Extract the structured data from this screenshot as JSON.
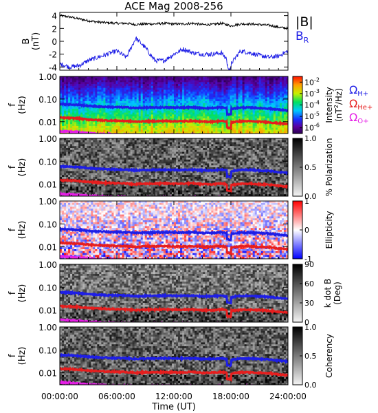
{
  "title": "ACE Mag 2008-256",
  "colors": {
    "b_total": "#000000",
    "b_r": "#1e1ee6",
    "omega_h": "#1e1ee6",
    "omega_he": "#e61e1e",
    "omega_o": "#e61ee6"
  },
  "x_axis": {
    "label": "Time (UT)",
    "ticks": [
      "00:00:00",
      "06:00:00",
      "12:00:00",
      "18:00:00",
      "24:00:00"
    ]
  },
  "legend": {
    "b_total": "|B|",
    "b_r": "B",
    "b_r_sub": "R",
    "omega_h": "Ω",
    "omega_h_sub": "H+",
    "omega_he": "Ω",
    "omega_he_sub": "He+",
    "omega_o": "Ω",
    "omega_o_sub": "O+"
  },
  "panels": {
    "b": {
      "ylabel": "B",
      "yunit": "(nT)",
      "yticks": [
        "4",
        "2",
        "0",
        "-2",
        "-4"
      ]
    },
    "freq_ylabel": "f",
    "freq_yunit": "(Hz)",
    "freq_yticks": [
      "1.00",
      "0.10",
      "0.01"
    ],
    "intensity": {
      "cb_label": "Intensity",
      "cb_unit_a": "(nT",
      "cb_unit_sup": "2",
      "cb_unit_b": "/Hz)",
      "cb_ticks": [
        "10",
        "10",
        "10",
        "10",
        "10"
      ],
      "cb_exponents": [
        "-2",
        "-3",
        "-4",
        "-5",
        "-6"
      ]
    },
    "polarization": {
      "cb_label": "% Polarization",
      "cb_ticks": [
        "1.0",
        "0.5",
        "0.0"
      ]
    },
    "ellipticity": {
      "cb_label": "Ellipticity",
      "cb_ticks": [
        "1",
        "0",
        "-1"
      ]
    },
    "kdotb": {
      "cb_label": "k dot B",
      "cb_unit": "(Deg)",
      "cb_ticks": [
        "90",
        "60",
        "30",
        "0"
      ]
    },
    "coherency": {
      "cb_label": "Coherency",
      "cb_ticks": [
        "1.0",
        "0.5",
        "0.0"
      ]
    }
  },
  "chart_data": {
    "type": "line",
    "title": "ACE Mag 2008-256",
    "xlabel": "Time (UT)",
    "x_hours": [
      0,
      1,
      2,
      3,
      4,
      5,
      6,
      7,
      8,
      9,
      10,
      11,
      12,
      13,
      14,
      15,
      16,
      17,
      18,
      19,
      20,
      21,
      22,
      23,
      24
    ],
    "b_panel": {
      "ylabel": "B (nT)",
      "ylim": [
        -4.5,
        4.5
      ],
      "series": [
        {
          "name": "|B|",
          "values": [
            4.0,
            3.8,
            3.5,
            3.2,
            3.0,
            2.9,
            2.8,
            2.8,
            2.6,
            2.7,
            2.7,
            2.8,
            2.7,
            2.7,
            2.8,
            2.6,
            2.6,
            2.8,
            2.4,
            2.7,
            2.7,
            2.6,
            2.5,
            2.2,
            2.0
          ]
        },
        {
          "name": "B_R",
          "values": [
            -3.5,
            -4.0,
            -3.8,
            -3.0,
            -2.5,
            -2.0,
            -1.5,
            -2.5,
            0.5,
            -1.0,
            -3.0,
            -3.0,
            -2.0,
            -1.2,
            -1.8,
            -2.0,
            -2.0,
            -1.8,
            -3.5,
            -1.5,
            -1.8,
            -2.2,
            -2.5,
            -2.3,
            -1.5
          ]
        }
      ]
    },
    "gyrofrequency_hz": {
      "H+": [
        0.06,
        0.058,
        0.055,
        0.05,
        0.047,
        0.045,
        0.044,
        0.043,
        0.04,
        0.042,
        0.042,
        0.043,
        0.042,
        0.042,
        0.043,
        0.04,
        0.04,
        0.043,
        0.037,
        0.042,
        0.042,
        0.04,
        0.038,
        0.034,
        0.031
      ],
      "He+": [
        0.015,
        0.0145,
        0.0138,
        0.0125,
        0.0118,
        0.0113,
        0.011,
        0.0108,
        0.01,
        0.0105,
        0.0105,
        0.0108,
        0.0105,
        0.0105,
        0.0108,
        0.01,
        0.01,
        0.0108,
        0.0093,
        0.0105,
        0.0105,
        0.01,
        0.0095,
        0.0085,
        0.0078
      ],
      "O+": [
        0.0038,
        0.0036,
        0.0034,
        0.0031,
        0.0029,
        0.0028,
        0.0027,
        0.0027,
        0.0025,
        0.0026,
        0.0026,
        0.0027,
        0.0026,
        0.0026,
        0.0027,
        0.0025,
        0.0025,
        0.0027,
        0.0023,
        0.0026,
        0.0026,
        0.0025,
        0.0024,
        0.0021,
        0.0019
      ]
    },
    "freq_ylim_hz": [
      0.003,
      1.0
    ],
    "spectrogram_panels": [
      "Intensity (nT^2/Hz)",
      "% Polarization",
      "Ellipticity",
      "k dot B (Deg)",
      "Coherency"
    ],
    "colorbar_ranges": {
      "intensity_log10": [
        -6.5,
        -1.5
      ],
      "polarization": [
        0.0,
        1.0
      ],
      "ellipticity": [
        -1.0,
        1.0
      ],
      "kdotb_deg": [
        0,
        90
      ],
      "coherency": [
        0.0,
        1.0
      ]
    }
  }
}
